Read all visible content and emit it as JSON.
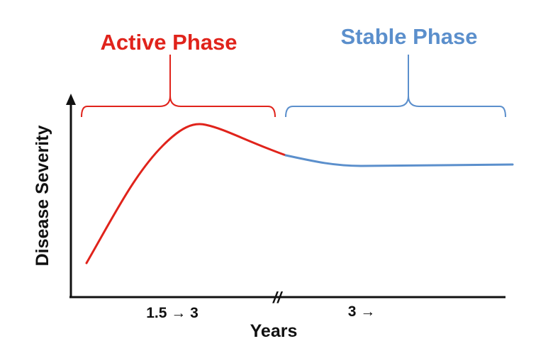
{
  "colors": {
    "active": "#e0231b",
    "stable": "#5b8fcc",
    "axis": "#111111"
  },
  "phases": {
    "active": {
      "label": "Active Phase"
    },
    "stable": {
      "label": "Stable Phase"
    }
  },
  "axes": {
    "y_label": "Disease Severity",
    "x_label": "Years",
    "x_ticks": [
      "1.5 → 3",
      "3 →"
    ],
    "break_marker": "//"
  },
  "icons": {
    "y_axis_arrow": "arrow-up-icon"
  }
}
